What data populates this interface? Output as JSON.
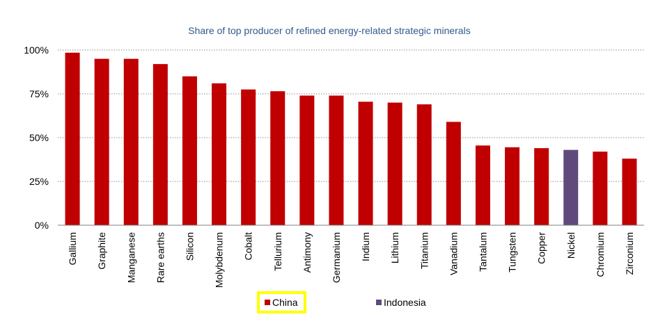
{
  "chart_data": {
    "type": "bar",
    "title": "Share of top producer of refined energy-related strategic minerals",
    "xlabel": "",
    "ylabel": "",
    "ylim": [
      0,
      100
    ],
    "yticks": [
      "0%",
      "25%",
      "50%",
      "75%",
      "100%"
    ],
    "ytick_values": [
      0,
      25,
      50,
      75,
      100
    ],
    "grid": true,
    "categories": [
      "Gallium",
      "Graphite",
      "Manganese",
      "Rare earths",
      "Silicon",
      "Molybdenum",
      "Cobalt",
      "Tellurium",
      "Antimony",
      "Germanium",
      "Indium",
      "Lithium",
      "Titanium",
      "Vanadium",
      "Tantalum",
      "Tungsten",
      "Copper",
      "Nickel",
      "Chromium",
      "Zirconium"
    ],
    "values": [
      98.5,
      95,
      95,
      92,
      85,
      81,
      77.5,
      76.5,
      74,
      74,
      70.5,
      70,
      69,
      59,
      45.5,
      44.5,
      44,
      43,
      42,
      38
    ],
    "producer": [
      "China",
      "China",
      "China",
      "China",
      "China",
      "China",
      "China",
      "China",
      "China",
      "China",
      "China",
      "China",
      "China",
      "China",
      "China",
      "China",
      "China",
      "Indonesia",
      "China",
      "China"
    ],
    "legend_position": "bottom",
    "legend": [
      {
        "name": "China",
        "color": "#c00000"
      },
      {
        "name": "Indonesia",
        "color": "#604a7b"
      }
    ],
    "highlight_color": "#ffff00"
  }
}
